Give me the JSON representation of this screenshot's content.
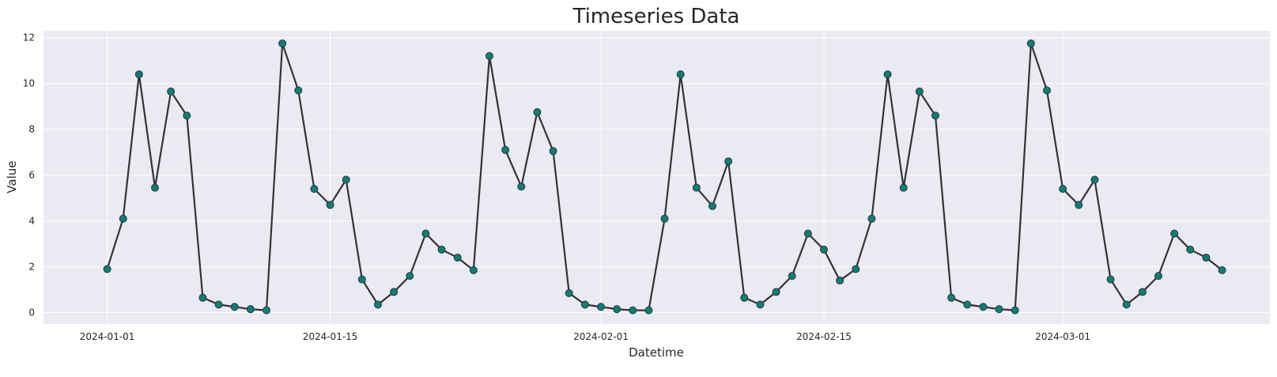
{
  "chart_data": {
    "type": "line",
    "title": "Timeseries Data",
    "xlabel": "Datetime",
    "ylabel": "Value",
    "x_tick_labels": [
      "2024-01-01",
      "2024-01-15",
      "2024-02-01",
      "2024-02-15",
      "2024-03-01"
    ],
    "y_tick_labels": [
      "0",
      "2",
      "4",
      "6",
      "8",
      "10",
      "12"
    ],
    "y_ticks": [
      0,
      2,
      4,
      6,
      8,
      10,
      12
    ],
    "ylim": [
      -0.5,
      12.3
    ],
    "xlim": [
      "2023-12-28",
      "2024-03-14"
    ],
    "grid": true,
    "x": [
      "2024-01-01",
      "2024-01-02",
      "2024-01-03",
      "2024-01-04",
      "2024-01-05",
      "2024-01-06",
      "2024-01-07",
      "2024-01-08",
      "2024-01-09",
      "2024-01-10",
      "2024-01-11",
      "2024-01-12",
      "2024-01-13",
      "2024-01-14",
      "2024-01-15",
      "2024-01-16",
      "2024-01-17",
      "2024-01-18",
      "2024-01-19",
      "2024-01-20",
      "2024-01-21",
      "2024-01-22",
      "2024-01-23",
      "2024-01-24",
      "2024-01-25",
      "2024-01-26",
      "2024-01-27",
      "2024-01-28",
      "2024-01-29",
      "2024-01-30",
      "2024-01-31",
      "2024-02-01",
      "2024-02-02",
      "2024-02-03",
      "2024-02-04",
      "2024-02-05",
      "2024-02-06",
      "2024-02-07",
      "2024-02-08",
      "2024-02-09",
      "2024-02-10",
      "2024-02-11",
      "2024-02-12",
      "2024-02-13",
      "2024-02-14",
      "2024-02-15",
      "2024-02-16",
      "2024-02-17",
      "2024-02-18",
      "2024-02-19",
      "2024-02-20",
      "2024-02-21",
      "2024-02-22",
      "2024-02-23",
      "2024-02-24",
      "2024-02-25",
      "2024-02-26",
      "2024-02-27",
      "2024-02-28",
      "2024-02-29",
      "2024-03-01",
      "2024-03-02",
      "2024-03-03",
      "2024-03-04",
      "2024-03-05",
      "2024-03-06",
      "2024-03-07",
      "2024-03-08",
      "2024-03-09",
      "2024-03-10",
      "2024-03-11"
    ],
    "series": [
      {
        "values": [
          1.9,
          4.1,
          10.4,
          5.45,
          9.65,
          8.6,
          0.65,
          0.35,
          0.25,
          0.15,
          0.1,
          11.75,
          9.7,
          5.4,
          4.7,
          5.8,
          1.45,
          0.35,
          0.9,
          1.6,
          3.45,
          2.75,
          2.4,
          1.85,
          11.2,
          7.1,
          5.5,
          8.75,
          7.05,
          0.85,
          0.35,
          0.25,
          0.15,
          0.1,
          0.1,
          4.1,
          10.4,
          5.45,
          4.65,
          6.6,
          0.65,
          0.35,
          0.9,
          1.6,
          3.45,
          2.75,
          1.4,
          1.9,
          4.1,
          10.4,
          5.45,
          9.65,
          8.6,
          0.65,
          0.35,
          0.25,
          0.15,
          0.1,
          11.75,
          9.7,
          5.4,
          4.7,
          5.8,
          1.45,
          0.35,
          0.9,
          1.6,
          3.45,
          2.75,
          2.4,
          1.85
        ],
        "line_color": "#333333",
        "marker_color": "#0e7c7b"
      }
    ]
  },
  "colors": {
    "plot_background": "#eaeaf2",
    "grid": "#ffffff",
    "text": "#262626"
  }
}
